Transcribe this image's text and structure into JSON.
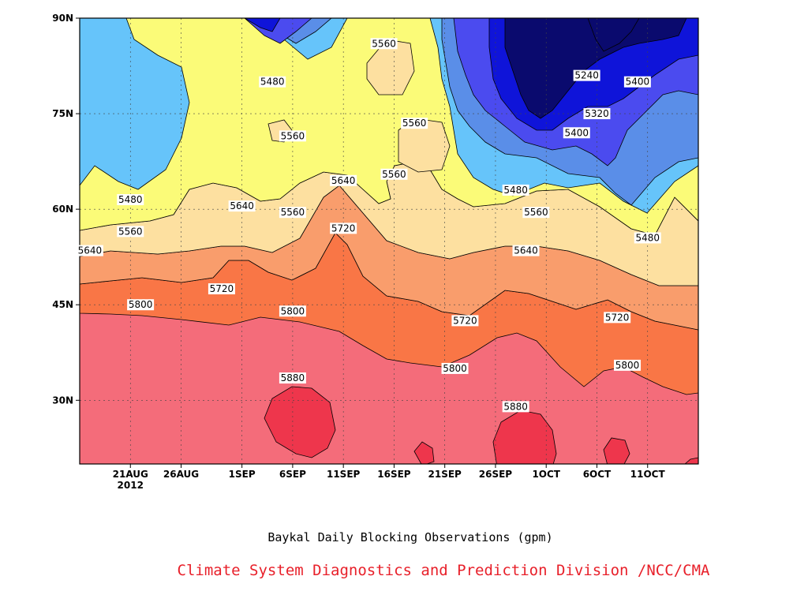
{
  "chart_data": {
    "type": "contour",
    "title": "Baykal Daily Blocking Observations (gpm)",
    "xlabel": "",
    "ylabel": "",
    "x_ticks": [
      {
        "label": "21AUG",
        "sublabel": "2012",
        "date": "2012-08-21"
      },
      {
        "label": "26AUG",
        "date": "2012-08-26"
      },
      {
        "label": "1SEP",
        "date": "2012-09-01"
      },
      {
        "label": "6SEP",
        "date": "2012-09-06"
      },
      {
        "label": "11SEP",
        "date": "2012-09-11"
      },
      {
        "label": "16SEP",
        "date": "2012-09-16"
      },
      {
        "label": "21SEP",
        "date": "2012-09-21"
      },
      {
        "label": "26SEP",
        "date": "2012-09-26"
      },
      {
        "label": "1OCT",
        "date": "2012-10-01"
      },
      {
        "label": "6OCT",
        "date": "2012-10-06"
      },
      {
        "label": "11OCT",
        "date": "2012-10-11"
      }
    ],
    "y_ticks": [
      "30N",
      "45N",
      "60N",
      "75N",
      "90N"
    ],
    "ylim": [
      20,
      90
    ],
    "contour_levels": [
      5240,
      5320,
      5400,
      5480,
      5560,
      5640,
      5720,
      5800,
      5880
    ],
    "fill_colors": {
      "5240": "#0a0a6e",
      "5320": "#0f14d9",
      "5400": "#4b4bef",
      "5480": "#5a8ee8",
      "5560": "#66c4fa",
      "5640": "#fbfb78",
      "5720": "#fde0a0",
      "5800": "#f99d6c",
      "5880": "#f97646",
      "max": "#f46c7a",
      "extreme": "#ee364c"
    },
    "contour_labels": [
      {
        "text": "5560",
        "date": "2012-09-15",
        "lat": 86
      },
      {
        "text": "5480",
        "date": "2012-09-04",
        "lat": 80
      },
      {
        "text": "5560",
        "date": "2012-09-06",
        "lat": 71.5
      },
      {
        "text": "5560",
        "date": "2012-09-18",
        "lat": 73.5
      },
      {
        "text": "5560",
        "date": "2012-09-16",
        "lat": 65.5
      },
      {
        "text": "5240",
        "date": "2012-10-05",
        "lat": 81
      },
      {
        "text": "5400",
        "date": "2012-10-10",
        "lat": 80
      },
      {
        "text": "5320",
        "date": "2012-10-06",
        "lat": 75
      },
      {
        "text": "5400",
        "date": "2012-10-04",
        "lat": 72
      },
      {
        "text": "5480",
        "date": "2012-09-28",
        "lat": 63
      },
      {
        "text": "5480",
        "date": "2012-08-21",
        "lat": 61.5
      },
      {
        "text": "5640",
        "date": "2012-09-01",
        "lat": 60.5
      },
      {
        "text": "5560",
        "date": "2012-09-06",
        "lat": 59.5
      },
      {
        "text": "5640",
        "date": "2012-09-11",
        "lat": 64.5
      },
      {
        "text": "5560",
        "date": "2012-09-30",
        "lat": 59.5
      },
      {
        "text": "5560",
        "date": "2012-08-21",
        "lat": 56.5
      },
      {
        "text": "5720",
        "date": "2012-09-11",
        "lat": 57
      },
      {
        "text": "5480",
        "date": "2012-10-11",
        "lat": 55.5
      },
      {
        "text": "5640",
        "date": "2012-08-17",
        "lat": 53.5
      },
      {
        "text": "5640",
        "date": "2012-09-29",
        "lat": 53.5
      },
      {
        "text": "5720",
        "date": "2012-08-30",
        "lat": 47.5
      },
      {
        "text": "5800",
        "date": "2012-08-22",
        "lat": 45
      },
      {
        "text": "5800",
        "date": "2012-09-06",
        "lat": 44
      },
      {
        "text": "5720",
        "date": "2012-09-23",
        "lat": 42.5
      },
      {
        "text": "5720",
        "date": "2012-10-08",
        "lat": 43
      },
      {
        "text": "5800",
        "date": "2012-09-22",
        "lat": 35
      },
      {
        "text": "5800",
        "date": "2012-10-09",
        "lat": 35.5
      },
      {
        "text": "5880",
        "date": "2012-09-06",
        "lat": 33.5
      },
      {
        "text": "5880",
        "date": "2012-09-28",
        "lat": 29
      }
    ]
  },
  "caption": {
    "title": "Baykal Daily Blocking Observations (gpm)",
    "credit": "Climate System Diagnostics and Prediction Division /NCC/CMA"
  }
}
